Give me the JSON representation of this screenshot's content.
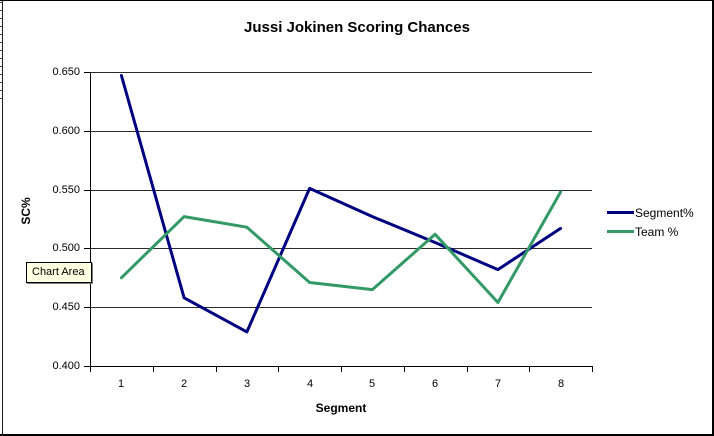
{
  "tooltip": {
    "text": "Chart Area"
  },
  "chart_data": {
    "type": "line",
    "title": "Jussi Jokinen Scoring Chances",
    "xlabel": "Segment",
    "ylabel": "SC%",
    "categories": [
      "1",
      "2",
      "3",
      "4",
      "5",
      "6",
      "7",
      "8"
    ],
    "series": [
      {
        "name": "Segment%",
        "color": "#000080",
        "values": [
          0.647,
          0.458,
          0.429,
          0.551,
          0.527,
          0.505,
          0.482,
          0.517
        ]
      },
      {
        "name": "Team %",
        "color": "#339966",
        "values": [
          0.475,
          0.527,
          0.518,
          0.471,
          0.465,
          0.512,
          0.454,
          0.548
        ]
      }
    ],
    "ylim": [
      0.4,
      0.65
    ],
    "ytick_labels": [
      "0.650",
      "0.600",
      "0.550",
      "0.500",
      "0.450",
      "0.400"
    ],
    "grid": true,
    "legend_position": "right"
  }
}
